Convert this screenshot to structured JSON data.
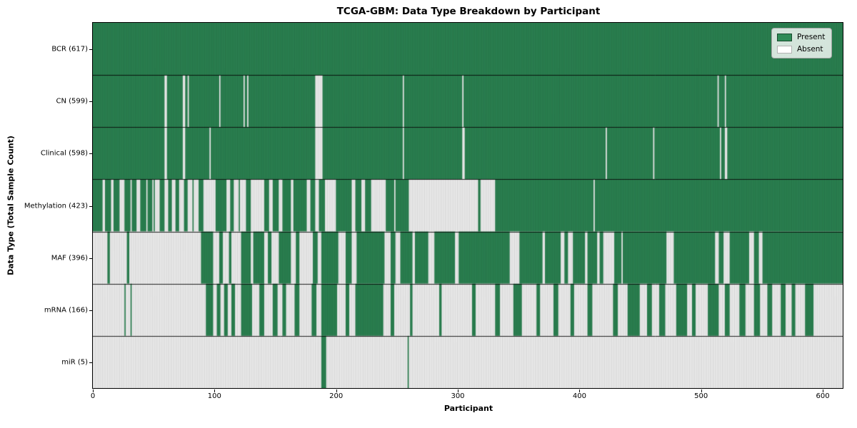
{
  "title": "TCGA-GBM: Data Type Breakdown by Participant",
  "xlabel": "Participant",
  "ylabel": "Data Type (Total Sample Count)",
  "legend": {
    "present_label": "Present",
    "absent_label": "Absent"
  },
  "colors": {
    "present": "#2e8b57",
    "absent": "#ffffff",
    "edge": "rgba(0,0,0,0.32)",
    "row_separator": "rgba(0,0,0,0.85)"
  },
  "x_ticks": [
    0,
    100,
    200,
    300,
    400,
    500,
    600
  ],
  "chart_data": {
    "type": "heatmap",
    "title": "TCGA-GBM: Data Type Breakdown by Participant",
    "xlabel": "Participant",
    "ylabel": "Data Type (Total Sample Count)",
    "legend": [
      "Present",
      "Absent"
    ],
    "legend_position": "upper right",
    "xlim": [
      0,
      617
    ],
    "x_ticks": [
      0,
      100,
      200,
      300,
      400,
      500,
      600
    ],
    "n_participants": 617,
    "encoding": "runs are [value,count] pairs per participant column; 1=Present (green), 0=Absent (white)",
    "rows": [
      {
        "name": "BCR",
        "label": "BCR (617)",
        "total": 617,
        "runs": [
          [
            1,
            617
          ]
        ]
      },
      {
        "name": "CN",
        "label": "CN (599)",
        "total": 599,
        "runs": [
          [
            1,
            59
          ],
          [
            0,
            2
          ],
          [
            1,
            13
          ],
          [
            0,
            2
          ],
          [
            1,
            2
          ],
          [
            0,
            1
          ],
          [
            1,
            25
          ],
          [
            0,
            1
          ],
          [
            1,
            19
          ],
          [
            0,
            1
          ],
          [
            1,
            2
          ],
          [
            0,
            1
          ],
          [
            1,
            55
          ],
          [
            0,
            6
          ],
          [
            1,
            66
          ],
          [
            0,
            1
          ],
          [
            1,
            48
          ],
          [
            0,
            1
          ],
          [
            1,
            209
          ],
          [
            0,
            1
          ],
          [
            1,
            5
          ],
          [
            0,
            1
          ],
          [
            1,
            96
          ]
        ]
      },
      {
        "name": "Clinical",
        "label": "Clinical (598)",
        "total": 598,
        "runs": [
          [
            1,
            59
          ],
          [
            0,
            2
          ],
          [
            1,
            13
          ],
          [
            0,
            2
          ],
          [
            1,
            20
          ],
          [
            0,
            1
          ],
          [
            1,
            86
          ],
          [
            0,
            6
          ],
          [
            1,
            66
          ],
          [
            0,
            1
          ],
          [
            1,
            48
          ],
          [
            0,
            2
          ],
          [
            1,
            116
          ],
          [
            0,
            1
          ],
          [
            1,
            38
          ],
          [
            0,
            1
          ],
          [
            1,
            54
          ],
          [
            0,
            1
          ],
          [
            1,
            3
          ],
          [
            0,
            2
          ],
          [
            1,
            95
          ]
        ]
      },
      {
        "name": "Methylation",
        "label": "Methylation (423)",
        "total": 423,
        "runs": [
          [
            1,
            8
          ],
          [
            0,
            2
          ],
          [
            1,
            5
          ],
          [
            0,
            2
          ],
          [
            1,
            5
          ],
          [
            0,
            4
          ],
          [
            1,
            5
          ],
          [
            0,
            1
          ],
          [
            1,
            4
          ],
          [
            0,
            3
          ],
          [
            1,
            5
          ],
          [
            0,
            1
          ],
          [
            1,
            4
          ],
          [
            0,
            1
          ],
          [
            1,
            1
          ],
          [
            0,
            4
          ],
          [
            1,
            4
          ],
          [
            0,
            3
          ],
          [
            1,
            3
          ],
          [
            0,
            3
          ],
          [
            1,
            3
          ],
          [
            0,
            4
          ],
          [
            1,
            3
          ],
          [
            0,
            4
          ],
          [
            1,
            1
          ],
          [
            0,
            4
          ],
          [
            1,
            4
          ],
          [
            0,
            10
          ],
          [
            1,
            9
          ],
          [
            0,
            3
          ],
          [
            1,
            3
          ],
          [
            0,
            4
          ],
          [
            1,
            1
          ],
          [
            0,
            5
          ],
          [
            1,
            4
          ],
          [
            0,
            11
          ],
          [
            1,
            4
          ],
          [
            0,
            3
          ],
          [
            1,
            5
          ],
          [
            0,
            3
          ],
          [
            1,
            7
          ],
          [
            0,
            2
          ],
          [
            1,
            11
          ],
          [
            0,
            3
          ],
          [
            1,
            4
          ],
          [
            0,
            3
          ],
          [
            1,
            5
          ],
          [
            0,
            9
          ],
          [
            1,
            13
          ],
          [
            0,
            3
          ],
          [
            1,
            5
          ],
          [
            0,
            3
          ],
          [
            1,
            5
          ],
          [
            0,
            12
          ],
          [
            1,
            7
          ],
          [
            0,
            1
          ],
          [
            1,
            11
          ],
          [
            0,
            57
          ],
          [
            1,
            2
          ],
          [
            0,
            12
          ],
          [
            1,
            81
          ],
          [
            0,
            1
          ],
          [
            1,
            204
          ]
        ]
      },
      {
        "name": "MAF",
        "label": "MAF (396)",
        "total": 396,
        "runs": [
          [
            0,
            12
          ],
          [
            1,
            2
          ],
          [
            0,
            14
          ],
          [
            1,
            2
          ],
          [
            0,
            59
          ],
          [
            1,
            10
          ],
          [
            0,
            5
          ],
          [
            1,
            3
          ],
          [
            0,
            5
          ],
          [
            1,
            2
          ],
          [
            0,
            8
          ],
          [
            1,
            8
          ],
          [
            0,
            2
          ],
          [
            1,
            9
          ],
          [
            0,
            3
          ],
          [
            1,
            3
          ],
          [
            0,
            6
          ],
          [
            1,
            10
          ],
          [
            0,
            4
          ],
          [
            1,
            3
          ],
          [
            0,
            11
          ],
          [
            1,
            4
          ],
          [
            0,
            3
          ],
          [
            1,
            14
          ],
          [
            0,
            6
          ],
          [
            1,
            5
          ],
          [
            0,
            4
          ],
          [
            1,
            23
          ],
          [
            0,
            5
          ],
          [
            1,
            4
          ],
          [
            0,
            4
          ],
          [
            1,
            10
          ],
          [
            0,
            2
          ],
          [
            1,
            11
          ],
          [
            0,
            5
          ],
          [
            1,
            17
          ],
          [
            0,
            3
          ],
          [
            1,
            42
          ],
          [
            0,
            8
          ],
          [
            1,
            19
          ],
          [
            0,
            2
          ],
          [
            1,
            13
          ],
          [
            0,
            3
          ],
          [
            1,
            3
          ],
          [
            0,
            4
          ],
          [
            1,
            10
          ],
          [
            0,
            2
          ],
          [
            1,
            8
          ],
          [
            0,
            2
          ],
          [
            1,
            3
          ],
          [
            0,
            9
          ],
          [
            1,
            6
          ],
          [
            0,
            1
          ],
          [
            1,
            36
          ],
          [
            0,
            6
          ],
          [
            1,
            34
          ],
          [
            0,
            3
          ],
          [
            1,
            4
          ],
          [
            0,
            5
          ],
          [
            1,
            16
          ],
          [
            0,
            4
          ],
          [
            1,
            4
          ],
          [
            0,
            3
          ],
          [
            1,
            66
          ]
        ]
      },
      {
        "name": "mRNA",
        "label": "mRNA (166)",
        "total": 166,
        "runs": [
          [
            0,
            26
          ],
          [
            1,
            1
          ],
          [
            0,
            4
          ],
          [
            1,
            1
          ],
          [
            0,
            61
          ],
          [
            1,
            6
          ],
          [
            0,
            3
          ],
          [
            1,
            3
          ],
          [
            0,
            3
          ],
          [
            1,
            3
          ],
          [
            0,
            3
          ],
          [
            1,
            3
          ],
          [
            0,
            5
          ],
          [
            1,
            9
          ],
          [
            0,
            6
          ],
          [
            1,
            4
          ],
          [
            0,
            7
          ],
          [
            1,
            4
          ],
          [
            0,
            4
          ],
          [
            1,
            3
          ],
          [
            0,
            7
          ],
          [
            1,
            4
          ],
          [
            0,
            10
          ],
          [
            1,
            4
          ],
          [
            0,
            4
          ],
          [
            1,
            13
          ],
          [
            0,
            7
          ],
          [
            1,
            3
          ],
          [
            0,
            5
          ],
          [
            1,
            23
          ],
          [
            0,
            6
          ],
          [
            1,
            3
          ],
          [
            0,
            13
          ],
          [
            1,
            2
          ],
          [
            0,
            22
          ],
          [
            1,
            2
          ],
          [
            0,
            25
          ],
          [
            1,
            3
          ],
          [
            0,
            16
          ],
          [
            1,
            4
          ],
          [
            0,
            11
          ],
          [
            1,
            7
          ],
          [
            0,
            12
          ],
          [
            1,
            3
          ],
          [
            0,
            11
          ],
          [
            1,
            4
          ],
          [
            0,
            10
          ],
          [
            1,
            3
          ],
          [
            0,
            11
          ],
          [
            1,
            4
          ],
          [
            0,
            17
          ],
          [
            1,
            4
          ],
          [
            0,
            8
          ],
          [
            1,
            10
          ],
          [
            0,
            6
          ],
          [
            1,
            4
          ],
          [
            0,
            6
          ],
          [
            1,
            5
          ],
          [
            0,
            9
          ],
          [
            1,
            9
          ],
          [
            0,
            4
          ],
          [
            1,
            3
          ],
          [
            0,
            10
          ],
          [
            1,
            9
          ],
          [
            0,
            5
          ],
          [
            1,
            4
          ],
          [
            0,
            8
          ],
          [
            1,
            5
          ],
          [
            0,
            7
          ],
          [
            1,
            5
          ],
          [
            0,
            6
          ],
          [
            1,
            4
          ],
          [
            0,
            7
          ],
          [
            1,
            4
          ],
          [
            0,
            5
          ],
          [
            1,
            3
          ],
          [
            0,
            8
          ],
          [
            1,
            7
          ],
          [
            0,
            24
          ]
        ]
      },
      {
        "name": "miR",
        "label": "miR (5)",
        "total": 5,
        "runs": [
          [
            0,
            188
          ],
          [
            1,
            4
          ],
          [
            0,
            67
          ],
          [
            1,
            1
          ],
          [
            0,
            357
          ]
        ]
      }
    ]
  }
}
